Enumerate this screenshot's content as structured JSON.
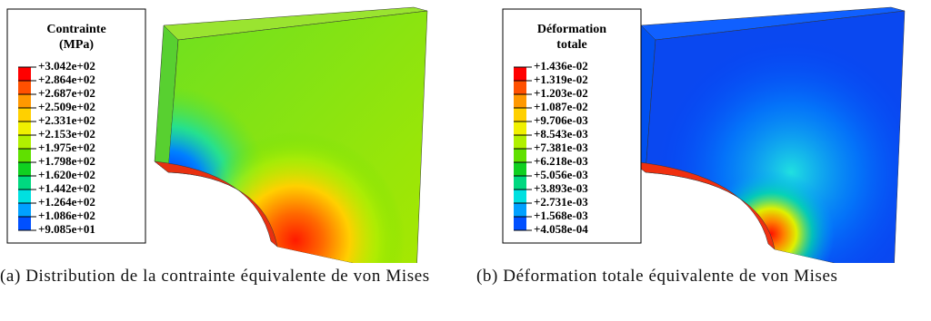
{
  "panels": [
    {
      "legend": {
        "title": "Contrainte\n(MPa)",
        "labels": [
          "+3.042e+02",
          "+2.864e+02",
          "+2.687e+02",
          "+2.509e+02",
          "+2.331e+02",
          "+2.153e+02",
          "+1.975e+02",
          "+1.798e+02",
          "+1.620e+02",
          "+1.442e+02",
          "+1.264e+02",
          "+1.086e+02",
          "+9.085e+01"
        ]
      },
      "caption": "(a) Distribution de la contrainte équivalente de von Mises"
    },
    {
      "legend": {
        "title": "Déformation\ntotale",
        "labels": [
          "+1.436e-02",
          "+1.319e-02",
          "+1.203e-02",
          "+1.087e-02",
          "+9.706e-03",
          "+8.543e-03",
          "+7.381e-03",
          "+6.218e-03",
          "+5.056e-03",
          "+3.893e-03",
          "+2.731e-03",
          "+1.568e-03",
          "+4.058e-04"
        ]
      },
      "caption": "(b) Déformation totale équivalente de von Mises"
    }
  ]
}
